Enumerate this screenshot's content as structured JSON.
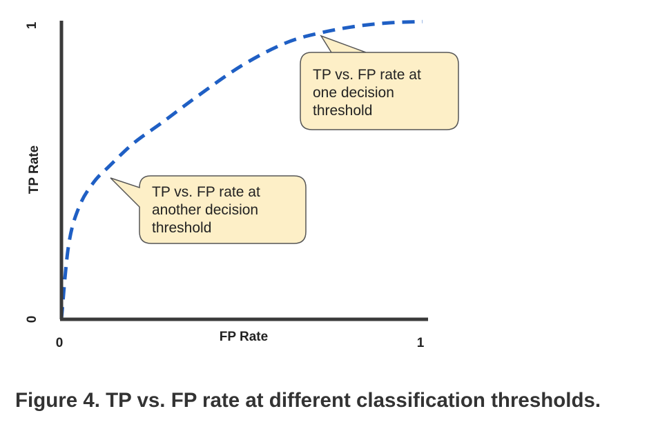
{
  "caption": "Figure 4. TP vs. FP rate at different classification thresholds.",
  "chart_data": {
    "type": "line",
    "xlabel": "FP Rate",
    "ylabel": "TP Rate",
    "xlim": [
      0,
      1
    ],
    "ylim": [
      0,
      1
    ],
    "x_ticks": [
      "0",
      "1"
    ],
    "y_ticks": [
      "0",
      "1"
    ],
    "grid": false,
    "line_style": "dashed",
    "line_color": "#1f5fc4",
    "axis_color": "#3a3a3a",
    "series": [
      {
        "x": [
          0,
          0.02,
          0.05,
          0.09,
          0.13,
          0.2,
          0.28,
          0.38,
          0.5,
          0.62,
          0.72,
          0.82,
          0.91,
          1.0
        ],
        "y": [
          0,
          0.25,
          0.38,
          0.46,
          0.51,
          0.59,
          0.66,
          0.75,
          0.85,
          0.925,
          0.96,
          0.982,
          0.993,
          0.997
        ]
      }
    ],
    "annotations": [
      {
        "lines": [
          "TP vs. FP rate at",
          "one decision",
          "threshold"
        ],
        "x": 0.72,
        "y": 0.96
      },
      {
        "lines": [
          "TP vs. FP rate at",
          "another decision",
          "threshold"
        ],
        "x": 0.13,
        "y": 0.51
      }
    ],
    "callout_fill": "#fdefc7",
    "callout_stroke": "#555555"
  }
}
